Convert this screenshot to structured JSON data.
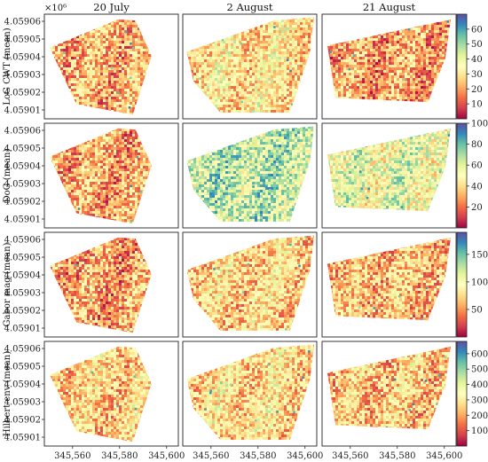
{
  "chart_data": {
    "type": "heatmap",
    "exponent_label": "×10⁶",
    "columns": [
      "20 July",
      "2 August",
      "21 August"
    ],
    "rows": [
      {
        "label": "LoG CWT (mean)",
        "colorbar": {
          "min": 0,
          "max": 70,
          "ticks": [
            "10",
            "20",
            "30",
            "40",
            "50",
            "60"
          ],
          "tick_values": [
            10,
            20,
            30,
            40,
            50,
            60
          ]
        },
        "means": [
          22,
          30,
          20
        ]
      },
      {
        "label": "DoG (mean)",
        "colorbar": {
          "min": 0,
          "max": 100,
          "ticks": [
            "20",
            "40",
            "60",
            "80",
            "100"
          ],
          "tick_values": [
            20,
            40,
            60,
            80,
            100
          ]
        },
        "means": [
          30,
          65,
          55
        ]
      },
      {
        "label": "Gabor mag (mean)",
        "colorbar": {
          "min": 0,
          "max": 190,
          "ticks": [
            "50",
            "100",
            "150"
          ],
          "tick_values": [
            50,
            100,
            150
          ]
        },
        "means": [
          55,
          75,
          65
        ]
      },
      {
        "label": "Hilbert env (mean)",
        "colorbar": {
          "min": 0,
          "max": 680,
          "ticks": [
            "100",
            "200",
            "300",
            "400",
            "500",
            "600"
          ],
          "tick_values": [
            100,
            200,
            300,
            400,
            500,
            600
          ]
        },
        "means": [
          260,
          280,
          250
        ]
      }
    ],
    "x_ticks": [
      "345,560",
      "345,580",
      "345,600"
    ],
    "x_tick_values": [
      345560,
      345580,
      345600
    ],
    "xlim": [
      345548,
      345605
    ],
    "y_ticks": [
      "4.05901",
      "4.05902",
      "4.05903",
      "4.05904",
      "4.05905",
      "4.05906"
    ],
    "y_tick_values": [
      4.05901,
      4.05902,
      4.05903,
      4.05904,
      4.05905,
      4.05906
    ],
    "ylim": [
      4.059005,
      4.059064
    ],
    "colormap": "Spectral",
    "colormap_stops": [
      "#9e0142",
      "#d53e4f",
      "#f46d43",
      "#fdae61",
      "#fee08b",
      "#ffffbf",
      "#e6f598",
      "#abdda4",
      "#66c2a5",
      "#3288bd",
      "#5e4fa2"
    ]
  }
}
